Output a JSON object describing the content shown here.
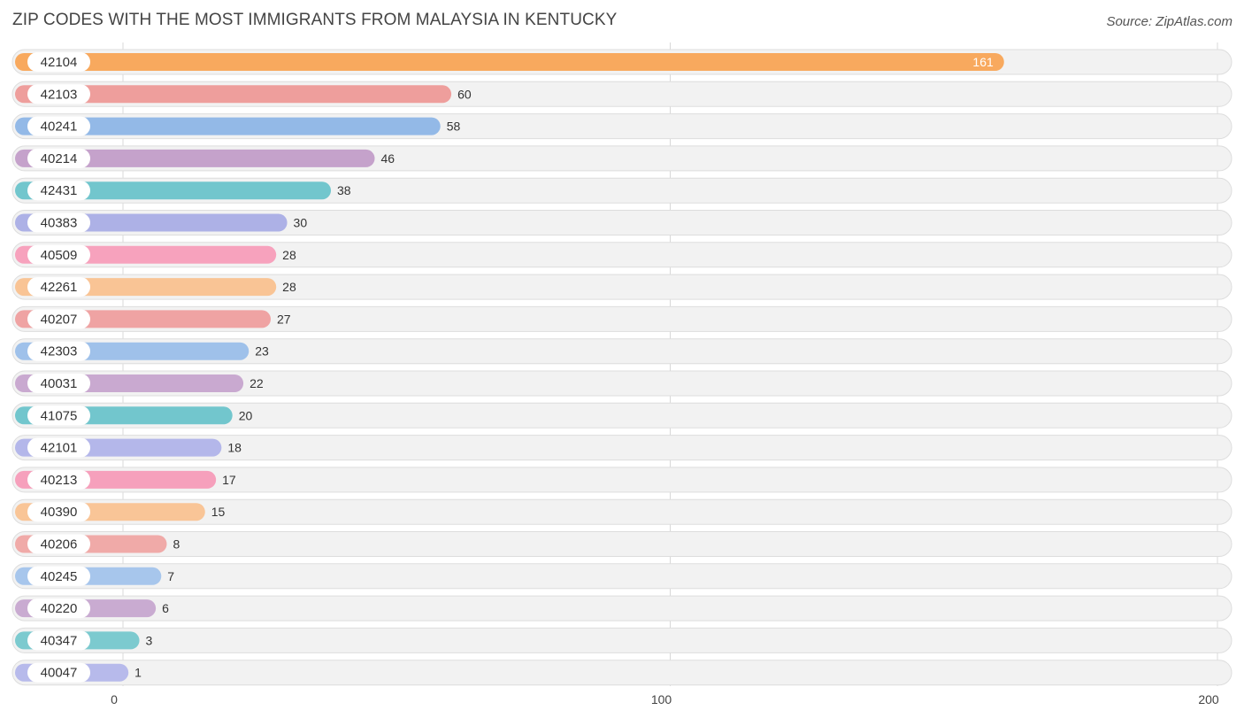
{
  "header": {
    "title": "ZIP CODES WITH THE MOST IMMIGRANTS FROM MALAYSIA IN KENTUCKY",
    "source": "Source: ZipAtlas.com"
  },
  "chart_data": {
    "type": "bar",
    "orientation": "horizontal",
    "title": "ZIP CODES WITH THE MOST IMMIGRANTS FROM MALAYSIA IN KENTUCKY",
    "xlabel": "",
    "ylabel": "",
    "xlim": [
      0,
      200
    ],
    "ticks": [
      0,
      100,
      200
    ],
    "grid": true,
    "categories": [
      "42104",
      "42103",
      "40241",
      "40214",
      "42431",
      "40383",
      "40509",
      "42261",
      "40207",
      "42303",
      "40031",
      "41075",
      "42101",
      "40213",
      "40390",
      "40206",
      "40245",
      "40220",
      "40347",
      "40047"
    ],
    "values": [
      161,
      60,
      58,
      46,
      38,
      30,
      28,
      28,
      27,
      23,
      22,
      20,
      18,
      17,
      15,
      8,
      7,
      6,
      3,
      1
    ],
    "colors": [
      "#f8a95e",
      "#ee9e9c",
      "#93b9e7",
      "#c5a2cb",
      "#72c6cd",
      "#adb1e6",
      "#f7a2bd",
      "#f9c495",
      "#efa3a3",
      "#9fc1ea",
      "#c9a9d0",
      "#72c6cd",
      "#b4b7ea",
      "#f6a0bc",
      "#f9c597",
      "#f0aaa8",
      "#a7c6ec",
      "#c9abd1",
      "#7ccacf",
      "#b7baeb"
    ]
  }
}
